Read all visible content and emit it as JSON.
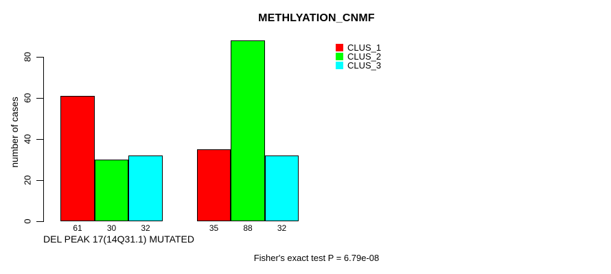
{
  "chart_data": {
    "type": "bar",
    "title": "METHLYATION_CNMF",
    "xlabel": "DEL PEAK 17(14Q31.1) MUTATED",
    "ylabel": "number of cases",
    "footnote": "Fisher's exact test P = 6.79e-08",
    "ylim": [
      0,
      80
    ],
    "yticks": [
      0,
      20,
      40,
      60,
      80
    ],
    "grid": false,
    "legend_position": "top-right",
    "series": [
      {
        "name": "CLUS_1",
        "color": "#ff0000",
        "values": [
          61,
          35
        ]
      },
      {
        "name": "CLUS_2",
        "color": "#00ff00",
        "values": [
          30,
          88
        ]
      },
      {
        "name": "CLUS_3",
        "color": "#00ffff",
        "values": [
          32,
          32
        ]
      }
    ],
    "groups": [
      {
        "bar_values": [
          61,
          30,
          32
        ],
        "bar_labels": [
          "61",
          "30",
          "32"
        ]
      },
      {
        "bar_values": [
          35,
          88,
          32
        ],
        "bar_labels": [
          "35",
          "88",
          "32"
        ]
      }
    ]
  }
}
